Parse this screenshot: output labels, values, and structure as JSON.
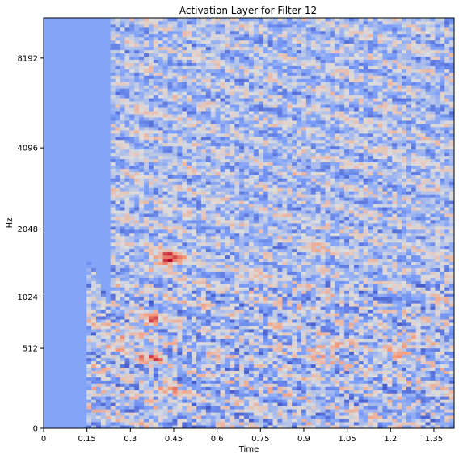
{
  "chart_data": {
    "type": "heatmap",
    "title": "Activation Layer for Filter 12",
    "xlabel": "Time",
    "ylabel": "Hz",
    "x_ticks": [
      "0",
      "0.15",
      "0.3",
      "0.45",
      "0.6",
      "0.75",
      "0.9",
      "1.05",
      "1.2",
      "1.35"
    ],
    "x_tick_values": [
      0,
      0.15,
      0.3,
      0.45,
      0.6,
      0.75,
      0.9,
      1.05,
      1.2,
      1.35
    ],
    "xlim": [
      0,
      1.42
    ],
    "y_ticks": [
      "0",
      "512",
      "1024",
      "2048",
      "4096",
      "8192"
    ],
    "y_scale": "mel",
    "ylim": [
      0,
      11025
    ],
    "colormap": "coolwarm",
    "grid": false,
    "notes_colors": {
      "low": "#3b4cc0",
      "mid": "#dddddd",
      "high": "#b40426"
    },
    "hotspots": [
      {
        "t": 0.43,
        "hz": 1550,
        "value": 1.0
      },
      {
        "t": 0.37,
        "hz": 780,
        "value": 0.75
      },
      {
        "t": 0.27,
        "hz": 580,
        "value": 0.7
      },
      {
        "t": 0.38,
        "hz": 440,
        "value": 0.7
      },
      {
        "t": 0.97,
        "hz": 520,
        "value": 0.75
      },
      {
        "t": 1.23,
        "hz": 520,
        "value": 0.7
      },
      {
        "t": 0.42,
        "hz": 200,
        "value": 0.65
      },
      {
        "t": 0.75,
        "hz": 1280,
        "value": 0.6
      },
      {
        "t": 0.94,
        "hz": 1700,
        "value": 0.6
      }
    ],
    "blank_region": {
      "t_end": 0.23,
      "hz_from": 3000
    }
  }
}
